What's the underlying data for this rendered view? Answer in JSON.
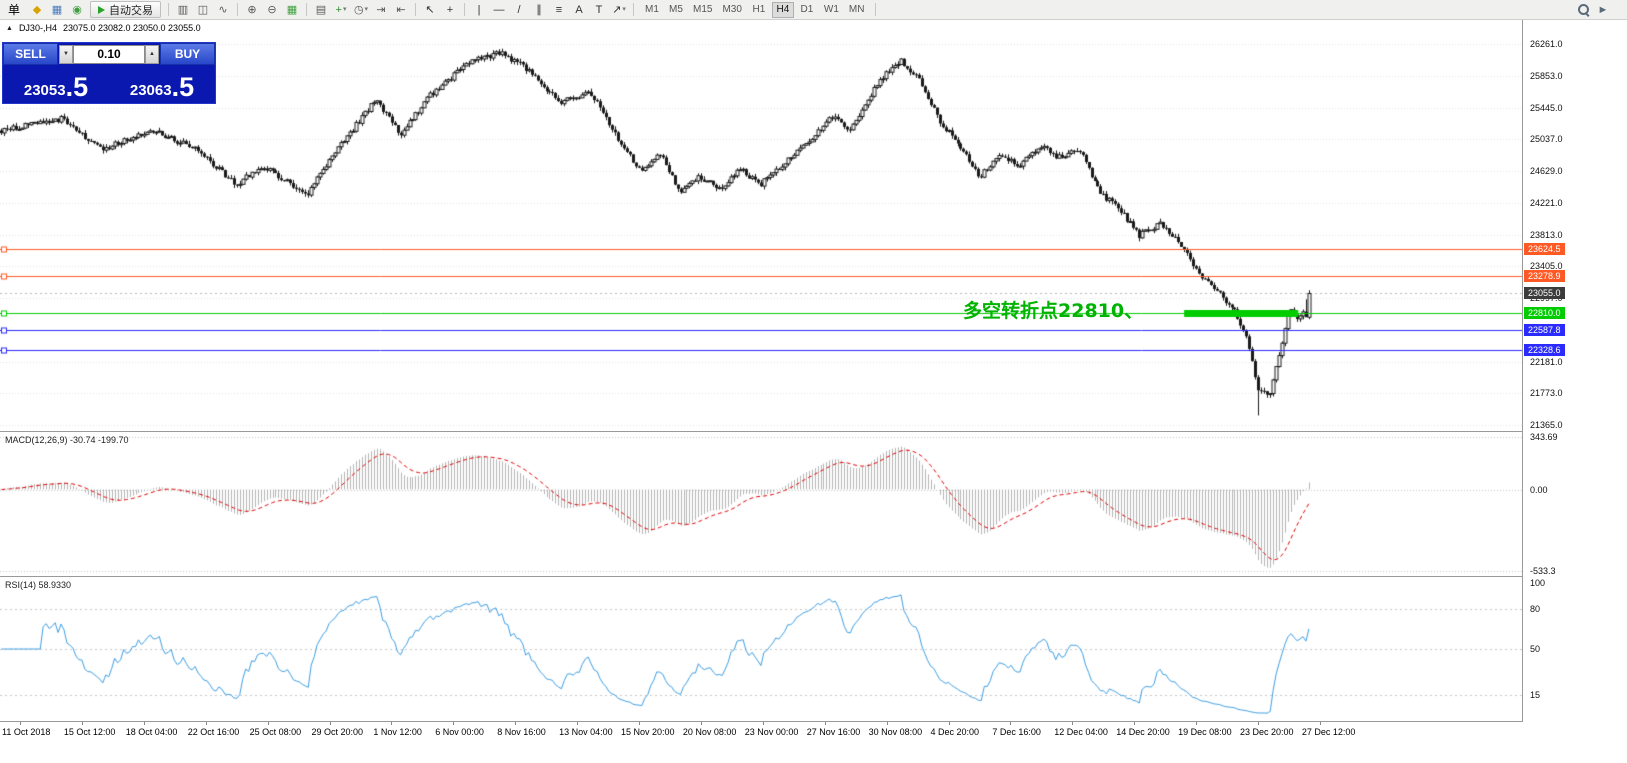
{
  "toolbar": {
    "items": [
      {
        "type": "menu",
        "name": "orders-menu",
        "label": "单"
      },
      {
        "type": "icon",
        "name": "new-order-icon",
        "glyph": "◆",
        "color": "#d9a400"
      },
      {
        "type": "icon",
        "name": "chart-window-icon",
        "glyph": "▦",
        "color": "#4a7abc"
      },
      {
        "type": "icon",
        "name": "market-watch-icon",
        "glyph": "◉",
        "color": "#3f9f3f"
      },
      {
        "type": "button",
        "name": "auto-trading-button",
        "label": "自动交易"
      },
      {
        "type": "sep"
      },
      {
        "type": "icon",
        "name": "bar-chart-icon",
        "glyph": "▥",
        "color": "#5a5a5a"
      },
      {
        "type": "icon",
        "name": "candlestick-chart-icon",
        "glyph": "◫",
        "color": "#5a5a5a"
      },
      {
        "type": "icon",
        "name": "line-chart-icon",
        "glyph": "∿",
        "color": "#5a5a5a"
      },
      {
        "type": "sep"
      },
      {
        "type": "icon",
        "name": "zoom-in-icon",
        "glyph": "⊕",
        "color": "#5a5a5a"
      },
      {
        "type": "icon",
        "name": "zoom-out-icon",
        "glyph": "⊖",
        "color": "#5a5a5a"
      },
      {
        "type": "icon",
        "name": "tile-windows-icon",
        "glyph": "▦",
        "color": "#3f9f3f"
      },
      {
        "type": "sep"
      },
      {
        "type": "icon",
        "name": "arrange-windows-icon",
        "glyph": "▤",
        "color": "#5a5a5a"
      },
      {
        "type": "icon",
        "name": "new-chart-icon",
        "glyph": "+",
        "color": "#2f8f2f",
        "dropdown": true
      },
      {
        "type": "icon",
        "name": "period-icon",
        "glyph": "◷",
        "color": "#5a5a5a",
        "dropdown": true
      },
      {
        "type": "icon",
        "name": "auto-scroll-icon",
        "glyph": "⇥",
        "color": "#5a5a5a"
      },
      {
        "type": "icon",
        "name": "chart-shift-icon",
        "glyph": "⇤",
        "color": "#5a5a5a"
      },
      {
        "type": "sep"
      },
      {
        "type": "icon",
        "name": "cursor-icon",
        "glyph": "↖",
        "color": "#333333"
      },
      {
        "type": "icon",
        "name": "crosshair-icon",
        "glyph": "+",
        "color": "#333333"
      },
      {
        "type": "sep"
      },
      {
        "type": "icon",
        "name": "vertical-line-icon",
        "glyph": "|",
        "color": "#333333"
      },
      {
        "type": "icon",
        "name": "horizontal-line-icon",
        "glyph": "—",
        "color": "#333333"
      },
      {
        "type": "icon",
        "name": "trendline-icon",
        "glyph": "/",
        "color": "#333333"
      },
      {
        "type": "icon",
        "name": "equidistant-channel-icon",
        "glyph": "∥",
        "color": "#333333"
      },
      {
        "type": "icon",
        "name": "fibonacci-icon",
        "glyph": "≡",
        "color": "#333333"
      },
      {
        "type": "icon",
        "name": "text-label-icon",
        "glyph": "A",
        "color": "#333333"
      },
      {
        "type": "icon",
        "name": "text-tool-icon",
        "glyph": "T",
        "color": "#333333"
      },
      {
        "type": "icon",
        "name": "arrows-tool-icon",
        "glyph": "↗",
        "color": "#333333",
        "dropdown": true
      },
      {
        "type": "sep"
      },
      {
        "type": "timeframes"
      },
      {
        "type": "sep"
      }
    ],
    "timeframes": {
      "items": [
        "M1",
        "M5",
        "M15",
        "M30",
        "H1",
        "H4",
        "D1",
        "W1",
        "MN"
      ],
      "active": "H4"
    },
    "right_icons": [
      {
        "name": "search-icon",
        "kind": "magnifier"
      },
      {
        "name": "pointer-icon",
        "kind": "glyph",
        "glyph": "►",
        "color": "#5a6b7a"
      }
    ]
  },
  "chart": {
    "window_icon": "▲",
    "title": "DJ30-,H4",
    "ohlc": "23075.0 23082.0 23050.0 23055.0"
  },
  "trade_panel": {
    "sell_label": "SELL",
    "buy_label": "BUY",
    "volume": "0.10",
    "decrease_glyph": "▼",
    "increase_glyph": "▲",
    "sell_price": "23053",
    "sell_price_big": ".5",
    "buy_price": "23063",
    "buy_price_big": ".5"
  },
  "annotation": {
    "text": "多空转折点22810、",
    "color": "#00b300"
  },
  "indicators": {
    "macd": {
      "label": "MACD(12,26,9) -30.74 -199.70",
      "axis_ticks": [
        "343.69",
        "0.00",
        "-533.3"
      ]
    },
    "rsi": {
      "label": "RSI(14) 58.9330",
      "axis_ticks": [
        "100",
        "80",
        "50",
        "15"
      ]
    }
  },
  "chart_data": {
    "type": "candlestick",
    "symbol": "DJ30-",
    "timeframe": "H4",
    "ohlc_header": {
      "open": 23075.0,
      "high": 23082.0,
      "low": 23050.0,
      "close": 23055.0
    },
    "current_price": 23055.0,
    "current_price_label": {
      "text": "23055.0",
      "bg": "#3c3c3c"
    },
    "y_top_price": 26261.0,
    "y_bottom_price": 21365.0,
    "y_axis_ticks": [
      26261.0,
      25853.0,
      25445.0,
      25037.0,
      24629.0,
      24221.0,
      23813.0,
      23405.0,
      22997.0,
      22589.0,
      22181.0,
      21773.0,
      21365.0
    ],
    "x_axis_labels": [
      "11 Oct 2018",
      "15 Oct 12:00",
      "18 Oct 04:00",
      "22 Oct 16:00",
      "25 Oct 08:00",
      "29 Oct 20:00",
      "1 Nov 12:00",
      "6 Nov 00:00",
      "8 Nov 16:00",
      "13 Nov 04:00",
      "15 Nov 20:00",
      "20 Nov 08:00",
      "23 Nov 00:00",
      "27 Nov 16:00",
      "30 Nov 08:00",
      "4 Dec 20:00",
      "7 Dec 16:00",
      "12 Dec 04:00",
      "14 Dec 20:00",
      "19 Dec 08:00",
      "23 Dec 20:00",
      "27 Dec 12:00"
    ],
    "horizontal_lines": [
      {
        "price": 23624.5,
        "color": "#ff5a26",
        "label": "23624.5",
        "type": "resistance"
      },
      {
        "price": 23278.9,
        "color": "#ff5a26",
        "label": "23278.9",
        "type": "resistance"
      },
      {
        "price": 22810.0,
        "color": "#00cc00",
        "label": "22810.0",
        "type": "pivot",
        "thick_segment": [
          0.778,
          0.853
        ]
      },
      {
        "price": 22587.8,
        "color": "#2b2bff",
        "label": "22587.8",
        "type": "support"
      },
      {
        "price": 22328.6,
        "color": "#2b2bff",
        "label": "22328.6",
        "type": "support"
      }
    ],
    "plot_fraction": 0.861,
    "candle_count": 440,
    "seed": 20181227,
    "noise": 70,
    "wick_extra": 45,
    "price_path_anchors": [
      [
        0.0,
        25150
      ],
      [
        0.046,
        25300
      ],
      [
        0.076,
        24900
      ],
      [
        0.115,
        25150
      ],
      [
        0.15,
        24900
      ],
      [
        0.179,
        24450
      ],
      [
        0.199,
        24700
      ],
      [
        0.218,
        24500
      ],
      [
        0.233,
        24300
      ],
      [
        0.252,
        24800
      ],
      [
        0.286,
        25550
      ],
      [
        0.305,
        25100
      ],
      [
        0.328,
        25600
      ],
      [
        0.359,
        26050
      ],
      [
        0.382,
        26150
      ],
      [
        0.405,
        25900
      ],
      [
        0.427,
        25500
      ],
      [
        0.45,
        25650
      ],
      [
        0.473,
        25000
      ],
      [
        0.489,
        24600
      ],
      [
        0.504,
        24850
      ],
      [
        0.519,
        24350
      ],
      [
        0.534,
        24550
      ],
      [
        0.55,
        24400
      ],
      [
        0.565,
        24650
      ],
      [
        0.58,
        24450
      ],
      [
        0.603,
        24800
      ],
      [
        0.618,
        25000
      ],
      [
        0.634,
        25350
      ],
      [
        0.649,
        25150
      ],
      [
        0.672,
        25800
      ],
      [
        0.687,
        26050
      ],
      [
        0.702,
        25800
      ],
      [
        0.718,
        25250
      ],
      [
        0.733,
        24950
      ],
      [
        0.748,
        24550
      ],
      [
        0.763,
        24850
      ],
      [
        0.779,
        24700
      ],
      [
        0.794,
        24950
      ],
      [
        0.809,
        24800
      ],
      [
        0.824,
        24900
      ],
      [
        0.84,
        24350
      ],
      [
        0.855,
        24150
      ],
      [
        0.87,
        23800
      ],
      [
        0.886,
        23950
      ],
      [
        0.901,
        23700
      ],
      [
        0.916,
        23300
      ],
      [
        0.931,
        23050
      ],
      [
        0.943,
        22850
      ],
      [
        0.954,
        22400
      ],
      [
        0.961,
        21800
      ],
      [
        0.97,
        21750
      ],
      [
        0.977,
        22250
      ],
      [
        0.985,
        22850
      ],
      [
        0.992,
        22700
      ],
      [
        1.0,
        23055
      ]
    ],
    "macd": {
      "params": [
        12,
        26,
        9
      ],
      "displayed_values": [
        -30.74,
        -199.7
      ],
      "range_max": 343.69,
      "range_min": -533.3
    },
    "rsi": {
      "period": 14,
      "last_value": 58.933,
      "scale": [
        0,
        100
      ],
      "levels": [
        80,
        50,
        15
      ]
    }
  }
}
